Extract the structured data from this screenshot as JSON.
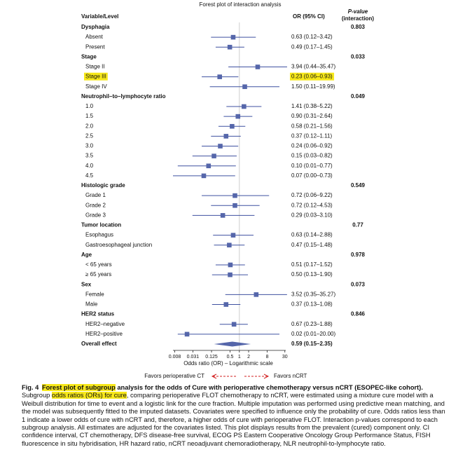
{
  "chart_data": {
    "type": "forest",
    "title": "Forest plot of interaction analysis",
    "columns": {
      "label": "Variable/Level",
      "estimate": "OR (95% CI)",
      "p_value": "P-value",
      "p_value_sub": "(interaction)"
    },
    "log_scale": true,
    "xlim": [
      0.007,
      32
    ],
    "xticks": [
      0.008,
      0.031,
      0.125,
      0.5,
      1,
      2,
      8,
      30
    ],
    "reference_value": 1,
    "x_label": "Odds ratio (OR) – Logarithmic scale",
    "favors_left": "Favors perioperative CT",
    "favors_right": "Favors nCRT",
    "marker_color": "#5566aa",
    "line_color": "#3f51a0",
    "highlight_color": "#f7e81a",
    "groups": [
      {
        "name": "Dysphagia",
        "p_value": 0.803,
        "rows": [
          {
            "label": "Absent",
            "values": [
              0.63,
              0.12,
              3.42
            ],
            "value_label": "0.63 (0.12–3.42)"
          },
          {
            "label": "Present",
            "values": [
              0.49,
              0.17,
              1.45
            ],
            "value_label": "0.49 (0.17–1.45)"
          }
        ]
      },
      {
        "name": "Stage",
        "p_value": 0.033,
        "rows": [
          {
            "label": "Stage II",
            "values": [
              3.94,
              0.44,
              35.47
            ],
            "value_label": "3.94 (0.44–35.47)"
          },
          {
            "label": "Stage III",
            "values": [
              0.23,
              0.06,
              0.93
            ],
            "value_label": "0.23 (0.06–0.93)",
            "highlighted": true
          },
          {
            "label": "Stage IV",
            "values": [
              1.5,
              0.11,
              19.99
            ],
            "value_label": "1.50 (0.11–19.99)"
          }
        ]
      },
      {
        "name": "Neutrophil–to–lymphocyte ratio",
        "p_value": 0.049,
        "rows": [
          {
            "label": "1.0",
            "values": [
              1.41,
              0.38,
              5.22
            ],
            "value_label": "1.41 (0.38–5.22)"
          },
          {
            "label": "1.5",
            "values": [
              0.9,
              0.31,
              2.64
            ],
            "value_label": "0.90 (0.31–2.64)"
          },
          {
            "label": "2.0",
            "values": [
              0.58,
              0.21,
              1.56
            ],
            "value_label": "0.58 (0.21–1.56)"
          },
          {
            "label": "2.5",
            "values": [
              0.37,
              0.12,
              1.11
            ],
            "value_label": "0.37 (0.12–1.11)"
          },
          {
            "label": "3.0",
            "values": [
              0.24,
              0.06,
              0.92
            ],
            "value_label": "0.24 (0.06–0.92)"
          },
          {
            "label": "3.5",
            "values": [
              0.15,
              0.03,
              0.82
            ],
            "value_label": "0.15 (0.03–0.82)"
          },
          {
            "label": "4.0",
            "values": [
              0.1,
              0.01,
              0.77
            ],
            "value_label": "0.10 (0.01–0.77)"
          },
          {
            "label": "4.5",
            "values": [
              0.07,
              0.0,
              0.73
            ],
            "value_label": "0.07 (0.00–0.73)"
          }
        ]
      },
      {
        "name": "Histologic grade",
        "p_value": 0.549,
        "rows": [
          {
            "label": "Grade 1",
            "values": [
              0.72,
              0.06,
              9.22
            ],
            "value_label": "0.72 (0.06–9.22)"
          },
          {
            "label": "Grade 2",
            "values": [
              0.72,
              0.12,
              4.53
            ],
            "value_label": "0.72 (0.12–4.53)"
          },
          {
            "label": "Grade 3",
            "values": [
              0.29,
              0.03,
              3.1
            ],
            "value_label": "0.29 (0.03–3.10)"
          }
        ]
      },
      {
        "name": "Tumor location",
        "p_value": 0.77,
        "rows": [
          {
            "label": "Esophagus",
            "values": [
              0.63,
              0.14,
              2.88
            ],
            "value_label": "0.63 (0.14–2.88)"
          },
          {
            "label": "Gastroesophageal junction",
            "values": [
              0.47,
              0.15,
              1.48
            ],
            "value_label": "0.47 (0.15–1.48)"
          }
        ]
      },
      {
        "name": "Age",
        "p_value": 0.978,
        "rows": [
          {
            "label": "< 65 years",
            "values": [
              0.51,
              0.17,
              1.52
            ],
            "value_label": "0.51 (0.17–1.52)"
          },
          {
            "label": "≥ 65 years",
            "values": [
              0.5,
              0.13,
              1.9
            ],
            "value_label": "0.50 (0.13–1.90)"
          }
        ]
      },
      {
        "name": "Sex",
        "p_value": 0.073,
        "rows": [
          {
            "label": "Female",
            "values": [
              3.52,
              0.35,
              35.27
            ],
            "value_label": "3.52 (0.35–35.27)"
          },
          {
            "label": "Male",
            "values": [
              0.37,
              0.13,
              1.08
            ],
            "value_label": "0.37 (0.13–1.08)"
          }
        ]
      },
      {
        "name": "HER2 status",
        "p_value": 0.846,
        "rows": [
          {
            "label": "HER2–negative",
            "values": [
              0.67,
              0.23,
              1.88
            ],
            "value_label": "0.67 (0.23–1.88)"
          },
          {
            "label": "HER2–positive",
            "values": [
              0.02,
              0.01,
              20.0
            ],
            "value_label": "0.02 (0.01–20.00)"
          }
        ]
      }
    ],
    "overall": {
      "label": "Overall effect",
      "values": [
        0.59,
        0.15,
        2.35
      ],
      "value_label": "0.59 (0.15–2.35)"
    }
  },
  "caption": {
    "title": [
      {
        "text": "Fig. 4"
      },
      {
        "text": "Forest plot of subgroup",
        "highlight": true
      },
      {
        "text": " analysis for the odds of Cure with perioperative chemotherapy versus nCRT (ESOPEC-like cohort)."
      }
    ],
    "body": [
      {
        "text": "Subgroup "
      },
      {
        "text": "odds ratios (ORs) for cure",
        "highlight": true
      },
      {
        "text": ", comparing perioperative FLOT chemotherapy to nCRT, were estimated using a mixture cure model with a Weibull distribution for time to event and a logistic link for the cure fraction. Multiple imputation was performed using predictive mean matching, and the model was subsequently fitted to the imputed datasets. Covariates were specified to influence only the probability of cure. Odds ratios less than 1 indicate a lower odds of cure with nCRT and, therefore, a higher odds of cure with perioperative FLOT. Interaction p-values correspond to each subgroup analysis. All estimates are adjusted for the covariates listed. This plot displays results from the prevalent (cured) component only. CI confidence interval, CT chemotherapy, DFS disease-free survival, ECOG PS Eastern Cooperative Oncology Group Performance Status, FISH fluorescence in situ hybridisation, HR hazard ratio, nCRT neoadjuvant chemoradiotherapy, NLR neutrophil-to-lymphocyte ratio."
      }
    ]
  }
}
